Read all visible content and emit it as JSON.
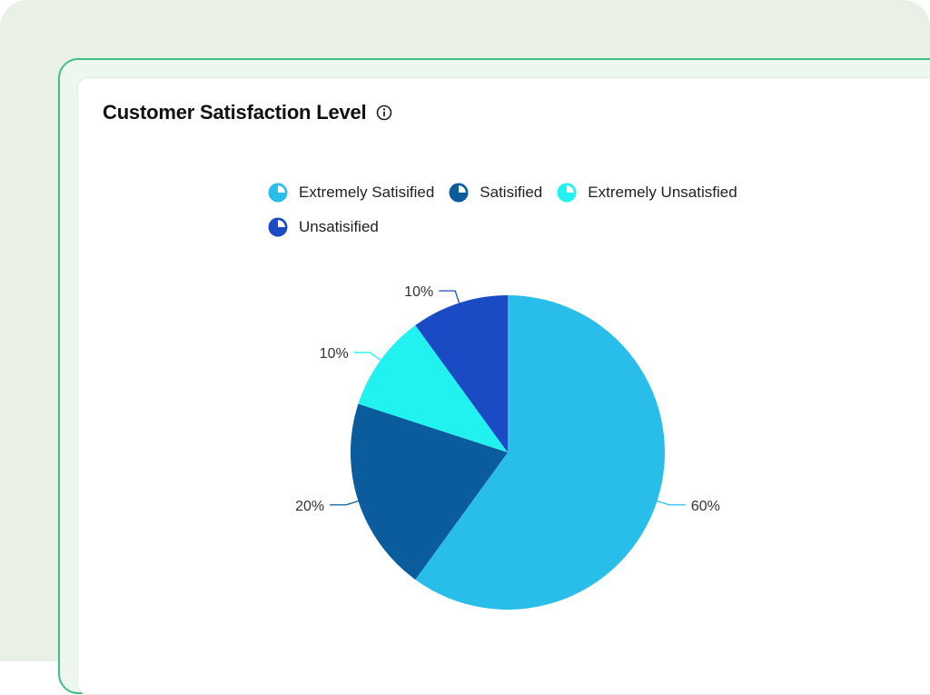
{
  "card": {
    "title": "Customer Satisfaction Level",
    "info_icon": "info-icon"
  },
  "chart_data": {
    "type": "pie",
    "title": "Customer Satisfaction Level",
    "legend_position": "top",
    "series": [
      {
        "name": "Extremely Satisified",
        "value": 60,
        "label": "60%",
        "color": "#29bde9"
      },
      {
        "name": "Satisified",
        "value": 20,
        "label": "20%",
        "color": "#0b5c9c"
      },
      {
        "name": "Extremely Unsatisfied",
        "value": 10,
        "label": "10%",
        "color": "#22f2ef"
      },
      {
        "name": "Unsatisified",
        "value": 10,
        "label": "10%",
        "color": "#1a4ac4"
      }
    ]
  }
}
